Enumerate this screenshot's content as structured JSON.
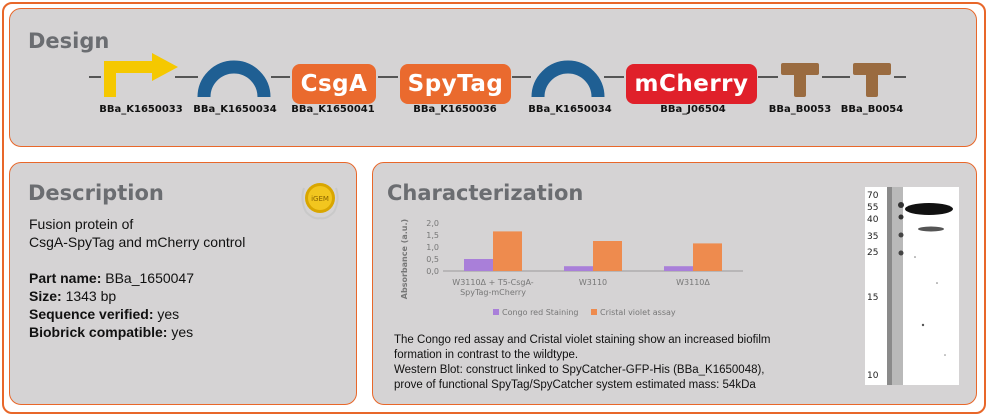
{
  "design": {
    "title": "Design",
    "parts": [
      {
        "type": "promoter",
        "id": "BBa_K1650033",
        "color": "#f5c800"
      },
      {
        "type": "rbs",
        "id": "BBa_K1650034",
        "color": "#1f5f93"
      },
      {
        "type": "cds",
        "name": "CsgA",
        "id": "BBa_K1650041",
        "color": "#ea6a2e"
      },
      {
        "type": "cds",
        "name": "SpyTag",
        "id": "BBa_K1650036",
        "color": "#ea6a2e"
      },
      {
        "type": "rbs",
        "id": "BBa_K1650034",
        "color": "#1f5f93"
      },
      {
        "type": "cds",
        "name": "mCherry",
        "id": "BBa_J06504",
        "color": "#e0202a"
      },
      {
        "type": "terminator",
        "id": "BBa_B0053",
        "color": "#9a6b40"
      },
      {
        "type": "terminator",
        "id": "BBa_B0054",
        "color": "#9a6b40"
      }
    ]
  },
  "description": {
    "title": "Description",
    "summary_line1": "Fusion protein of",
    "summary_line2": "CsgA-SpyTag and mCherry control",
    "specs": [
      {
        "label": "Part name:",
        "value": "BBa_1650047"
      },
      {
        "label": "Size:",
        "value": "1343 bp"
      },
      {
        "label": "Sequence verified:",
        "value": "yes"
      },
      {
        "label": "Biobrick compatible:",
        "value": "yes"
      }
    ],
    "medal_icon": "gold-medal-icon",
    "medal_text": "iGEM"
  },
  "characterization": {
    "title": "Characterization",
    "text_line1": "The Congo red assay and Cristal violet staining show an increased biofilm",
    "text_line2": "formation in contrast to the wildtype.",
    "text_line3": "Western Blot: construct linked to SpyCatcher-GFP-His (BBa_K1650048),",
    "text_line4": "prove of functional SpyTag/SpyCatcher system estimated mass: 54kDa",
    "blot_markers": [
      "70",
      "55",
      "40",
      "35",
      "25",
      "15",
      "10"
    ]
  },
  "chart_data": {
    "type": "bar",
    "ylabel": "Absorbance (a.u.)",
    "ylim": [
      0,
      2.0
    ],
    "yticks": [
      "2,0",
      "1,5",
      "1,0",
      "0,5",
      "0,0"
    ],
    "categories": [
      "W3110Δ + T5-CsgA-SpyTag-mCherry",
      "W3110",
      "W3110Δ"
    ],
    "category_lines": [
      [
        "W3110Δ + T5-CsgA-",
        "SpyTag-mCherry"
      ],
      [
        "W3110"
      ],
      [
        "W3110Δ"
      ]
    ],
    "series": [
      {
        "name": "Congo red Staining",
        "values": [
          0.5,
          0.2,
          0.2
        ],
        "color": "#a97fd9"
      },
      {
        "name": "Cristal violet assay",
        "values": [
          1.65,
          1.25,
          1.15
        ],
        "color": "#ee8b4e"
      }
    ],
    "grid": false,
    "legend": "bottom"
  }
}
